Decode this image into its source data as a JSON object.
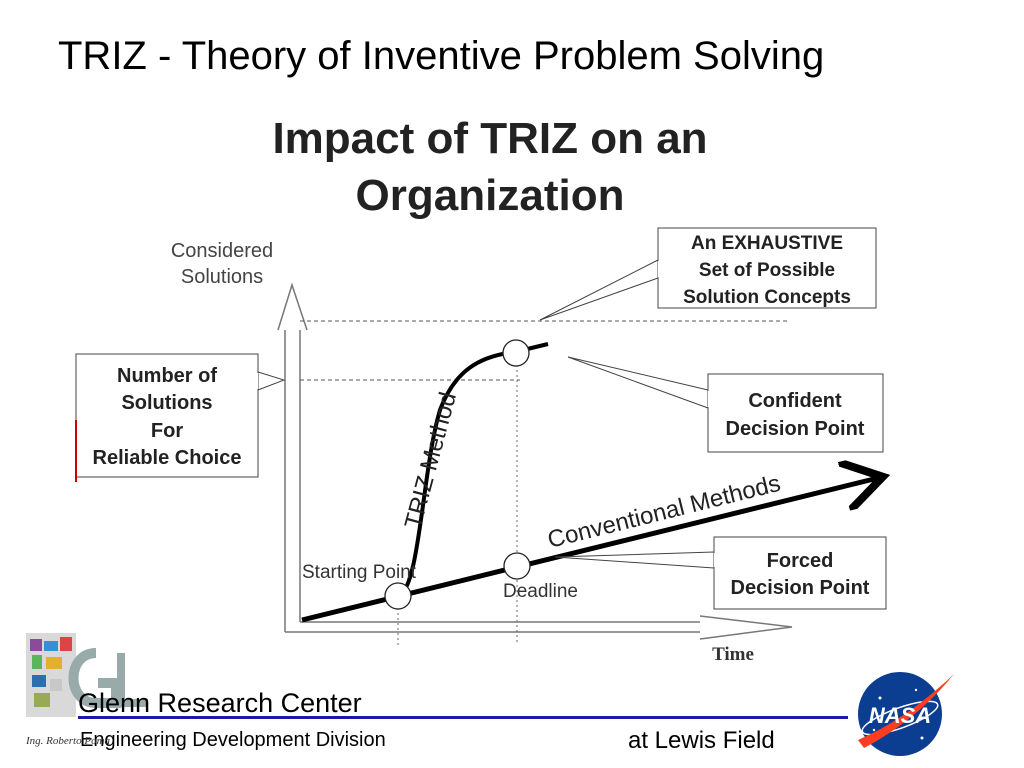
{
  "slide": {
    "title": "TRIZ - Theory of Inventive Problem Solving"
  },
  "diagram": {
    "heading_line1": "Impact of TRIZ on an",
    "heading_line2": "Organization",
    "y_axis_label_line1": "Considered",
    "y_axis_label_line2": "Solutions",
    "x_axis_label": "Time",
    "curve_triz_label": "TRIZ Method",
    "line_conventional_label": "Conventional Methods",
    "starting_point_label": "Starting Point",
    "deadline_label": "Deadline",
    "callouts": {
      "exhaustive": [
        "An EXHAUSTIVE",
        "Set of Possible",
        "Solution Concepts"
      ],
      "confident": [
        "Confident",
        "Decision Point"
      ],
      "forced": [
        "Forced",
        "Decision Point"
      ],
      "reliable": [
        "Number of",
        "Solutions",
        "For",
        "Reliable Choice"
      ]
    }
  },
  "footer": {
    "center_name": "Glenn Research Center",
    "division": "Engineering Development Division",
    "location": "at Lewis Field",
    "author": "Ing. Roberto Poma",
    "nasa_logo_text": "NASA"
  },
  "colors": {
    "rule": "#1a1aa8",
    "nasa_blue": "#0b3d91",
    "nasa_red": "#fc3d21"
  },
  "icons": {
    "grc_logo": "glenn-research-center-logo",
    "nasa_logo": "nasa-meatball-logo"
  }
}
